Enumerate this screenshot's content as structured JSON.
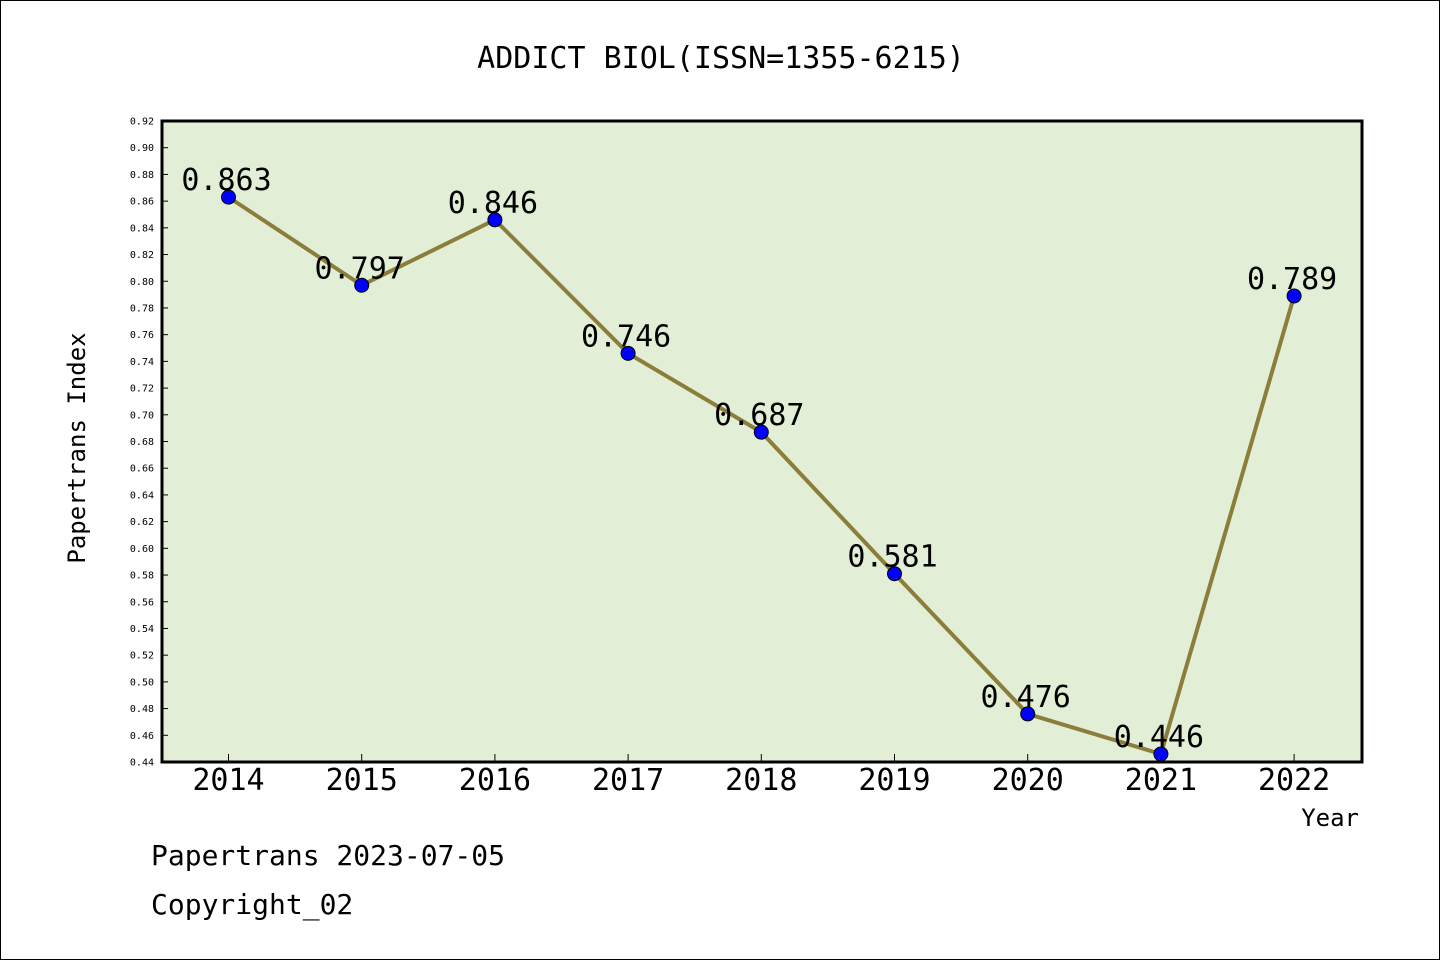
{
  "chart_data": {
    "type": "line",
    "title": "ADDICT BIOL(ISSN=1355-6215)",
    "xlabel": "Year",
    "ylabel": "Papertrans Index",
    "categories": [
      "2014",
      "2015",
      "2016",
      "2017",
      "2018",
      "2019",
      "2020",
      "2021",
      "2022"
    ],
    "values": [
      0.863,
      0.797,
      0.846,
      0.746,
      0.687,
      0.581,
      0.476,
      0.446,
      0.789
    ],
    "value_labels": [
      "0.863",
      "0.797",
      "0.846",
      "0.746",
      "0.687",
      "0.581",
      "0.476",
      "0.446",
      "0.789"
    ],
    "ylim": [
      0.44,
      0.92
    ],
    "ytick_step": 0.02,
    "ytick_labels": [
      "0.44",
      "0.46",
      "0.48",
      "0.50",
      "0.52",
      "0.54",
      "0.56",
      "0.58",
      "0.60",
      "0.62",
      "0.64",
      "0.66",
      "0.68",
      "0.70",
      "0.72",
      "0.74",
      "0.76",
      "0.78",
      "0.80",
      "0.82",
      "0.84",
      "0.86",
      "0.88",
      "0.90",
      "0.92"
    ],
    "grid": false,
    "legend": "none",
    "line_color": "#8b7d3a",
    "marker_color": "#0000ff",
    "plot_background": "#e2efd6"
  },
  "footer": {
    "line1": "Papertrans 2023-07-05",
    "line2": "Copyright_02"
  }
}
